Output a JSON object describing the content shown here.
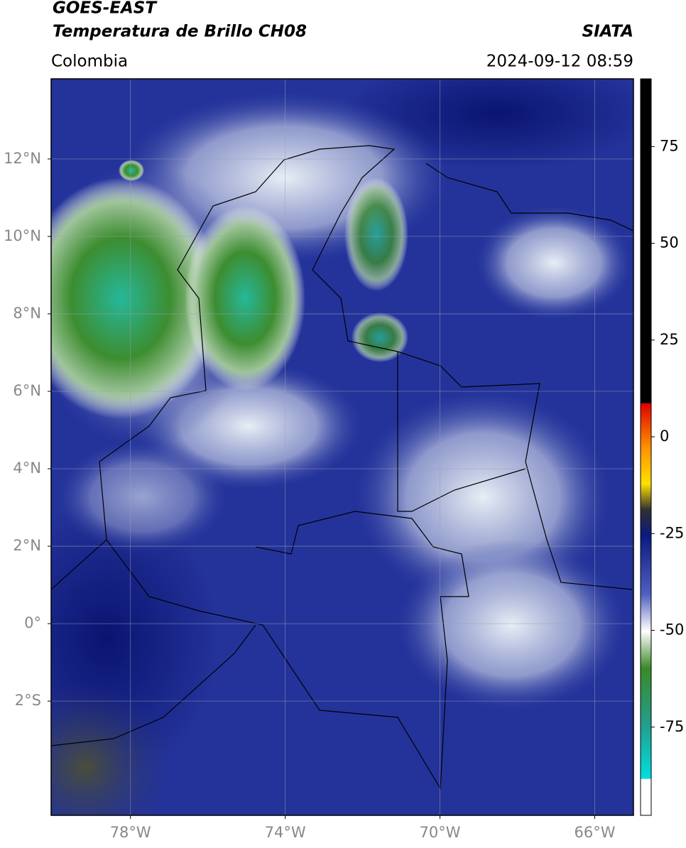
{
  "header": {
    "title": "GOES-EAST",
    "subtitle": "Temperatura de Brillo CH08",
    "source": "SIATA",
    "region": "Colombia",
    "datetime": "2024-09-12 08:59"
  },
  "map": {
    "xlim": [
      -80.05,
      -65.0
    ],
    "ylim": [
      -4.95,
      14.07
    ],
    "lat_ticks": [
      {
        "value": 12,
        "label": "12°N"
      },
      {
        "value": 10,
        "label": "10°N"
      },
      {
        "value": 8,
        "label": "8°N"
      },
      {
        "value": 6,
        "label": "6°N"
      },
      {
        "value": 4,
        "label": "4°N"
      },
      {
        "value": 2,
        "label": "2°N"
      },
      {
        "value": 0,
        "label": "0°"
      },
      {
        "value": -2,
        "label": "2°S"
      }
    ],
    "lon_ticks": [
      {
        "value": -78,
        "label": "78°W"
      },
      {
        "value": -74,
        "label": "74°W"
      },
      {
        "value": -70,
        "label": "70°W"
      },
      {
        "value": -66,
        "label": "66°W"
      }
    ],
    "grid": true
  },
  "colorbar": {
    "lim": [
      -97.8,
      92.5
    ],
    "ticks": [
      75,
      50,
      25,
      0,
      -25,
      -50,
      -75
    ]
  }
}
